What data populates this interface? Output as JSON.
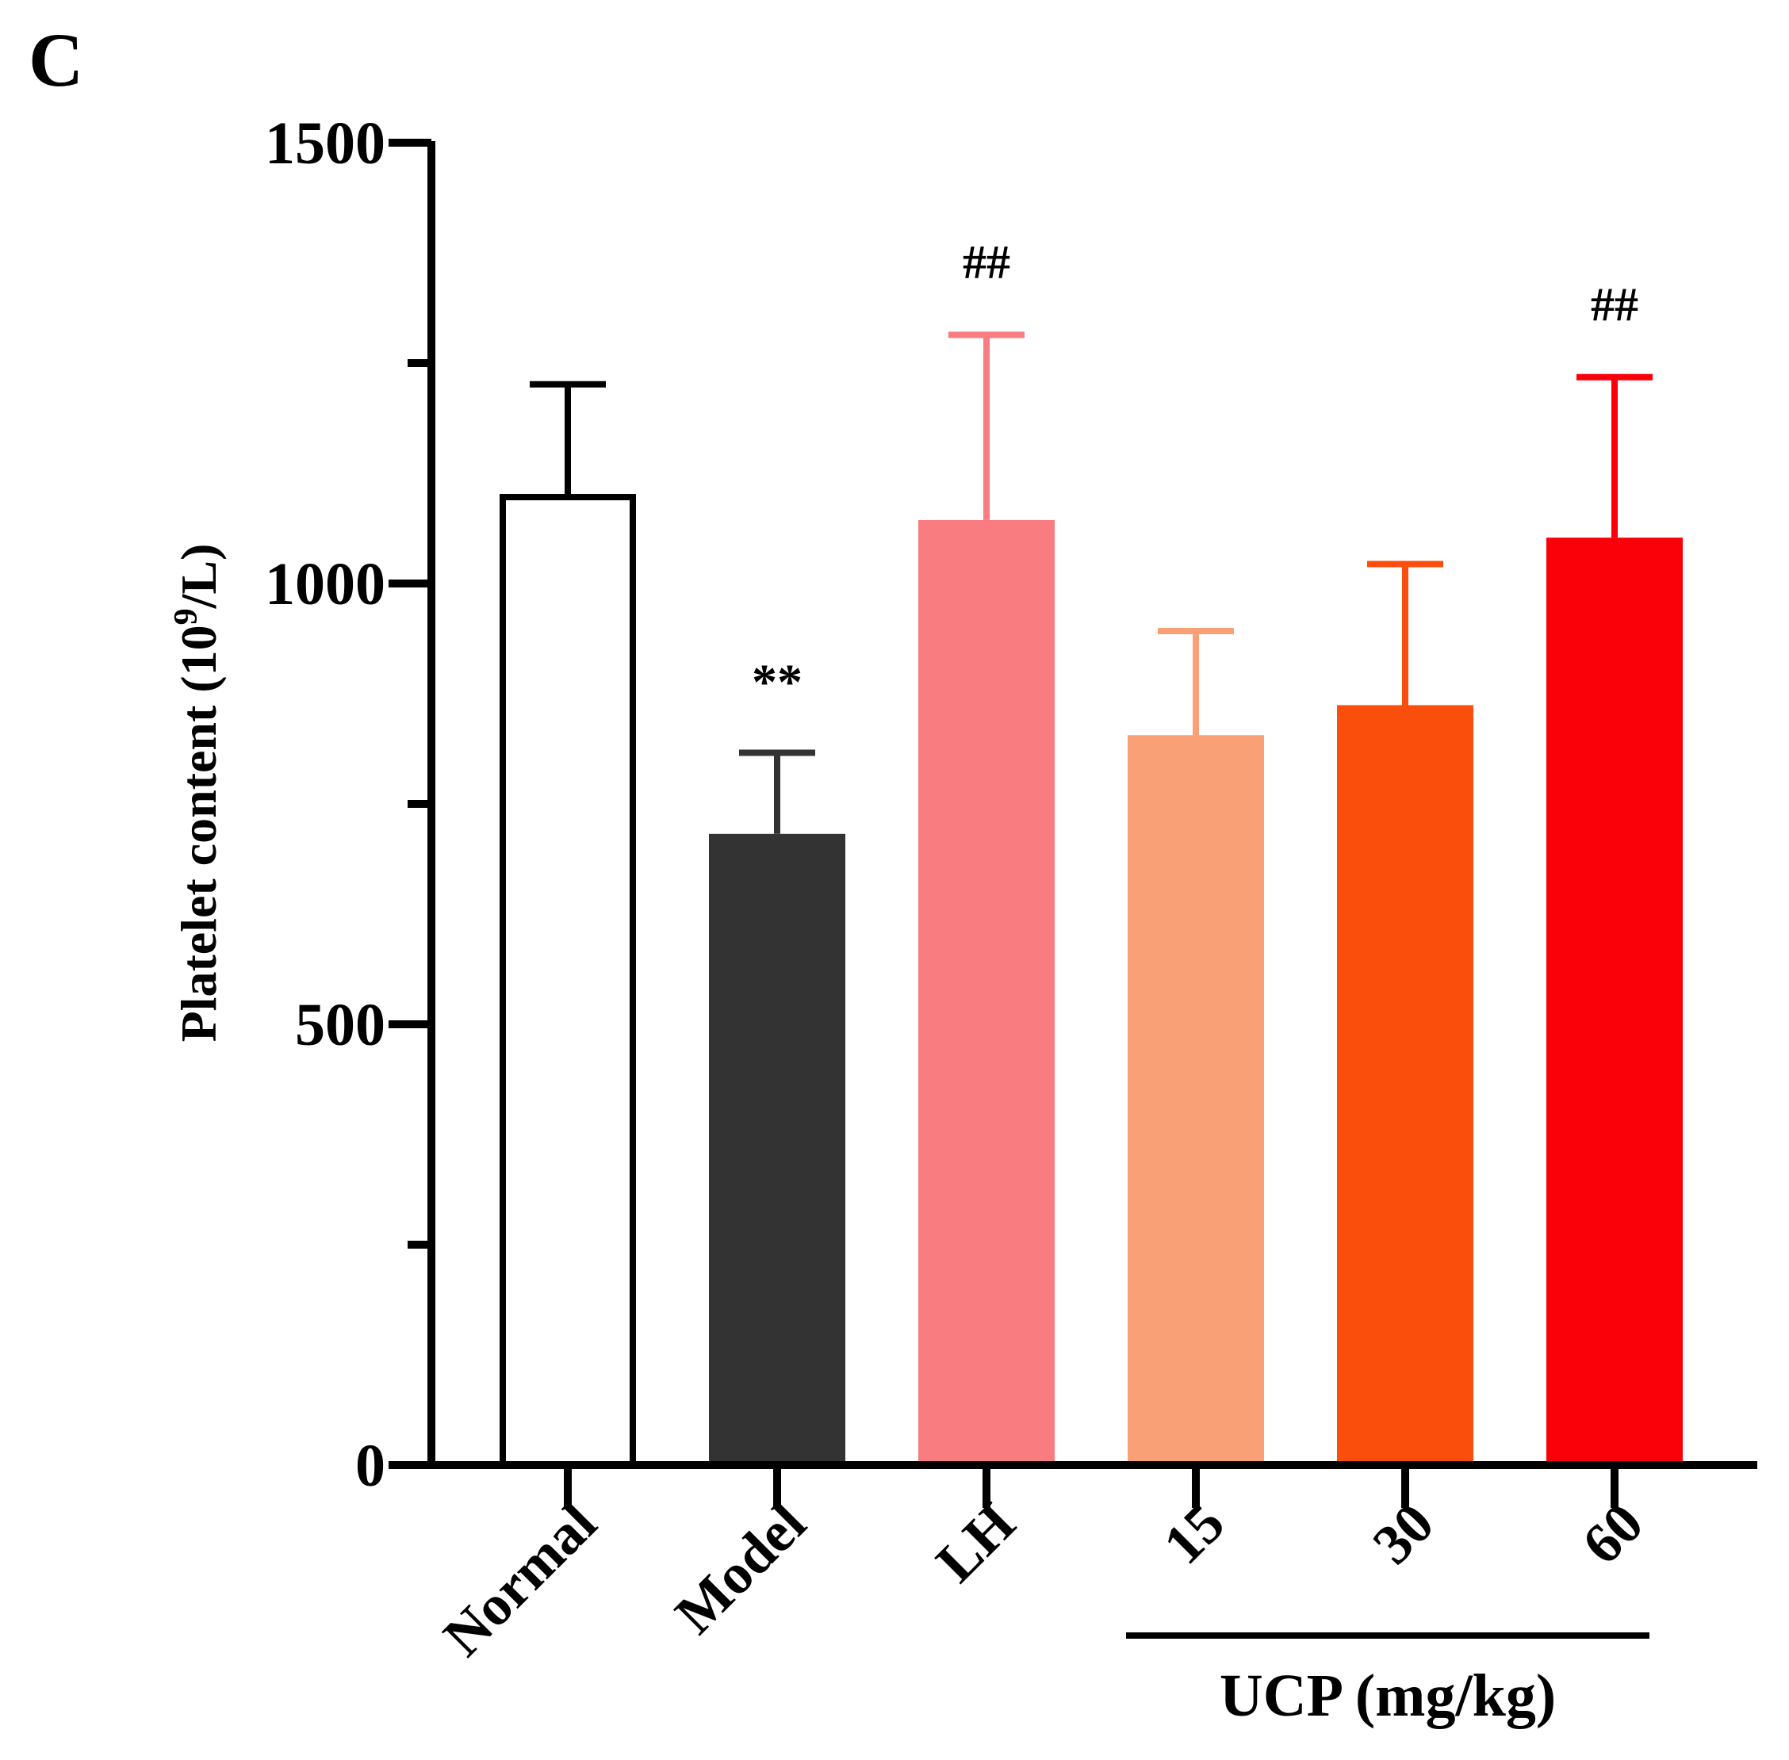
{
  "panel_label": "C",
  "chart_data": {
    "type": "bar",
    "title": "",
    "xlabel": "",
    "ylabel_main": "Platelet content (10",
    "ylabel_sup": "9",
    "ylabel_end": "/L)",
    "ylim": [
      0,
      1500
    ],
    "major_ticks": [
      0,
      500,
      1000,
      1500
    ],
    "minor_ticks": [
      250,
      750,
      1250
    ],
    "tick_labels": [
      "0",
      "500",
      "1000",
      "1500"
    ],
    "categories": [
      "Normal",
      "Model",
      "LH",
      "15",
      "30",
      "60"
    ],
    "values": [
      1098,
      716,
      1072,
      828,
      862,
      1052
    ],
    "errors": [
      128,
      92,
      210,
      118,
      160,
      182
    ],
    "colors": [
      "#ffffff",
      "#333333",
      "#f87c80",
      "#f9a077",
      "#fa4f0c",
      "#fa0008"
    ],
    "significance": [
      "",
      "**",
      "##",
      "",
      "",
      "##"
    ],
    "group_label": "UCP (mg/kg)",
    "group_members": [
      "15",
      "30",
      "60"
    ]
  }
}
